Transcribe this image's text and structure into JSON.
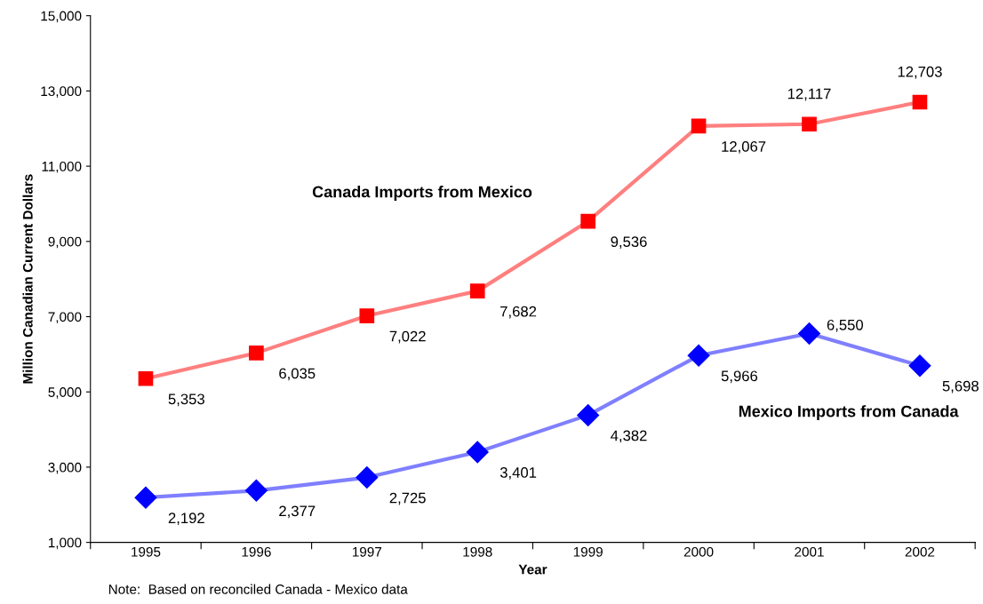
{
  "chart_data": {
    "type": "line",
    "categories": [
      "1995",
      "1996",
      "1997",
      "1998",
      "1999",
      "2000",
      "2001",
      "2002"
    ],
    "series": [
      {
        "name": "Canada Imports from Mexico",
        "color": "#ff0000",
        "marker": "square",
        "values": [
          5353,
          6035,
          7022,
          7682,
          9536,
          12067,
          12117,
          12703
        ],
        "value_labels": [
          "5,353",
          "6,035",
          "7,022",
          "7,682",
          "9,536",
          "12,067",
          "12,117",
          "12,703"
        ]
      },
      {
        "name": "Mexico Imports from Canada",
        "color": "#0000ff",
        "marker": "diamond",
        "values": [
          2192,
          2377,
          2725,
          3401,
          4382,
          5966,
          6550,
          5698
        ],
        "value_labels": [
          "2,192",
          "2,377",
          "2,725",
          "3,401",
          "4,382",
          "5,966",
          "6,550",
          "5,698"
        ]
      }
    ],
    "xlabel": "Year",
    "ylabel": "Million Canadian Current Dollars",
    "ylim": [
      1000,
      15000
    ],
    "yticks": [
      {
        "value": 1000,
        "label": "1,000"
      },
      {
        "value": 3000,
        "label": "3,000"
      },
      {
        "value": 5000,
        "label": "5,000"
      },
      {
        "value": 7000,
        "label": "7,000"
      },
      {
        "value": 9000,
        "label": "9,000"
      },
      {
        "value": 11000,
        "label": "11,000"
      },
      {
        "value": 13000,
        "label": "13,000"
      },
      {
        "value": 15000,
        "label": "15,000"
      }
    ],
    "grid": false,
    "legend": false,
    "line_style": "solid",
    "annotations": [
      "Note:  Based on reconciled Canada - Mexico data"
    ]
  }
}
